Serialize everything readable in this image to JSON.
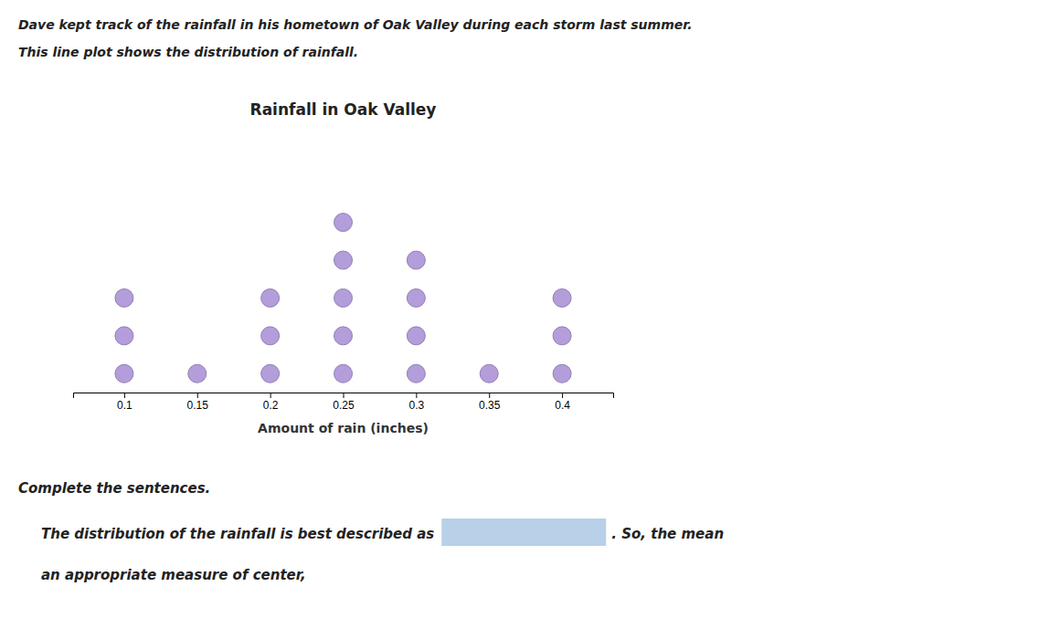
{
  "chart_data": {
    "type": "dot",
    "title": "Rainfall in Oak Valley",
    "x_label": "Amount of rain (inches)",
    "x": [
      0.1,
      0.15,
      0.2,
      0.25,
      0.3,
      0.35,
      0.4
    ],
    "values": [
      3,
      1,
      3,
      5,
      4,
      1,
      3
    ],
    "color": "#b39ddb",
    "xlim": [
      0.065,
      0.435
    ],
    "xticks": [
      0.1,
      0.15,
      0.2,
      0.25,
      0.3,
      0.35,
      0.4
    ],
    "ylim": [
      0,
      7
    ],
    "tick_labels": "x",
    "annotations": [
      "Dave kept track of the rainfall in his hometown of Oak Valley during each storm last summer.",
      "This line plot shows the distribution of rainfall.",
      "Complete the sentences.",
      "The distribution of the rainfall is best described as",
      ". So, the mean",
      "an appropriate measure of center,"
    ]
  }
}
